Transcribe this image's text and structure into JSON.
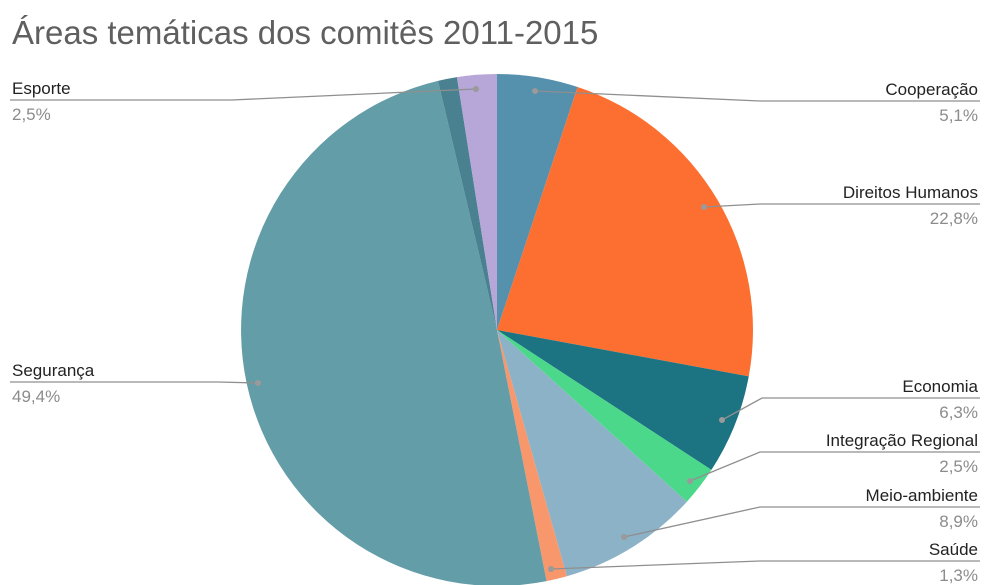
{
  "chart_data": {
    "type": "pie",
    "title": "Áreas temáticas dos comitês 2011-2015",
    "slices": [
      {
        "label": "Cooperação",
        "value": 5.1,
        "display": "5,1%",
        "color": "#5590ad"
      },
      {
        "label": "Direitos Humanos",
        "value": 22.8,
        "display": "22,8%",
        "color": "#fd6f30"
      },
      {
        "label": "Economia",
        "value": 6.3,
        "display": "6,3%",
        "color": "#1c7382"
      },
      {
        "label": "Integração Regional",
        "value": 2.5,
        "display": "2,5%",
        "color": "#4cd88a"
      },
      {
        "label": "Meio-ambiente",
        "value": 8.9,
        "display": "8,9%",
        "color": "#8cb2c8"
      },
      {
        "label": "Saúde",
        "value": 1.3,
        "display": "1,3%",
        "color": "#f8976b"
      },
      {
        "label": "Segurança",
        "value": 49.4,
        "display": "49,4%",
        "color": "#639da7"
      },
      {
        "label": "",
        "value": 1.2,
        "display": "",
        "color": "#4a8191"
      },
      {
        "label": "Esporte",
        "value": 2.5,
        "display": "2,5%",
        "color": "#b7a6d8"
      }
    ],
    "legend": "none"
  }
}
